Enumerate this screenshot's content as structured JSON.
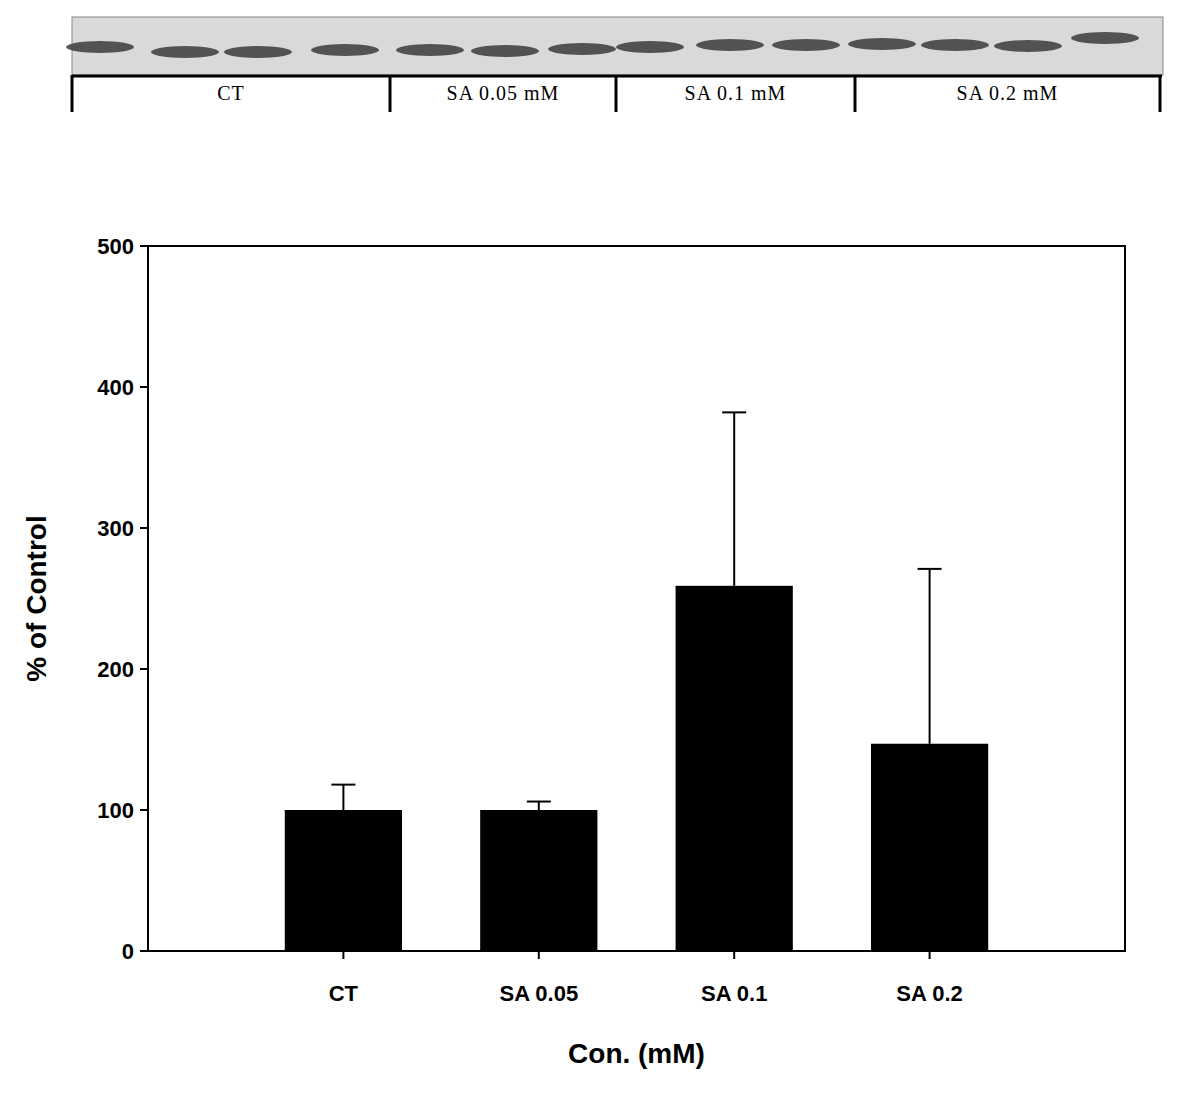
{
  "chart_data": {
    "type": "bar",
    "annotations": [
      "CT",
      "SA 0.05 mM",
      "SA 0.1 mM",
      "SA 0.2 mM"
    ],
    "x_label": "Con. (mM)",
    "y_label": "% of Control",
    "categories": [
      "CT",
      "SA 0.05",
      "SA 0.1",
      "SA 0.2"
    ],
    "values": [
      100,
      100,
      259,
      147
    ],
    "errors": [
      18,
      6,
      123,
      124
    ],
    "color": "#000000",
    "ylim": [
      0,
      500
    ],
    "yticks": [
      0,
      100,
      200,
      300,
      400,
      500
    ],
    "grid": false
  }
}
